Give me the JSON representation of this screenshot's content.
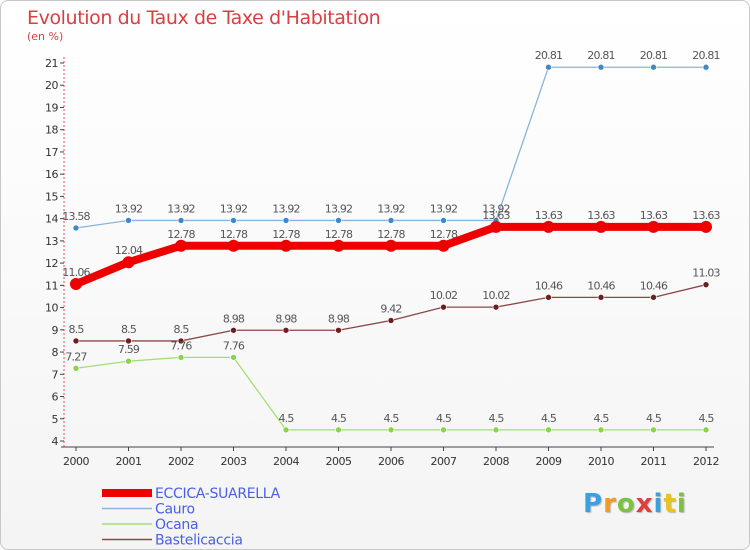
{
  "title": "Evolution du Taux de Taxe d'Habitation",
  "subtitle": "(en %)",
  "logo": {
    "text": "Proxiti",
    "letter_colors": [
      "#3aa0e0",
      "#f29b1d",
      "#7cc142",
      "#e23c3c",
      "#3aa0e0",
      "#e8c21e",
      "#7cc142"
    ]
  },
  "chart_data": {
    "type": "line",
    "title": "Evolution du Taux de Taxe d'Habitation",
    "ylabel": "(en %)",
    "xlabel": "",
    "x": [
      "2000",
      "2001",
      "2002",
      "2003",
      "2004",
      "2005",
      "2006",
      "2007",
      "2008",
      "2009",
      "2010",
      "2011",
      "2012"
    ],
    "ylim": [
      4,
      21
    ],
    "yticks": [
      "4",
      "5",
      "6",
      "7",
      "8",
      "9",
      "10",
      "11",
      "12",
      "13",
      "14",
      "15",
      "16",
      "17",
      "18",
      "19",
      "20",
      "21"
    ],
    "grid": false,
    "legend": "bottom-left",
    "series": [
      {
        "name": "ECCICA-SUARELLA",
        "color": "#ee0000",
        "marker": "#ee0000",
        "bold": true,
        "values": [
          11.06,
          12.04,
          12.78,
          12.78,
          12.78,
          12.78,
          12.78,
          12.78,
          13.63,
          13.63,
          13.63,
          13.63,
          13.63
        ],
        "labels": [
          "11.06",
          "12.04",
          "12.78",
          "12.78",
          "12.78",
          "12.78",
          "12.78",
          "12.78",
          "13.63",
          "13.63",
          "13.63",
          "13.63",
          "13.63"
        ]
      },
      {
        "name": "Cauro",
        "color": "#8ab4dc",
        "marker": "#3f88c5",
        "bold": false,
        "values": [
          13.58,
          13.92,
          13.92,
          13.92,
          13.92,
          13.92,
          13.92,
          13.92,
          13.92,
          20.81,
          20.81,
          20.81,
          20.81
        ],
        "labels": [
          "13.58",
          "13.92",
          "13.92",
          "13.92",
          "13.92",
          "13.92",
          "13.92",
          "13.92",
          "13.92",
          "20.81",
          "20.81",
          "20.81",
          "20.81"
        ]
      },
      {
        "name": "Ocana",
        "color": "#a4de72",
        "marker": "#8ad545",
        "bold": false,
        "values": [
          7.27,
          7.59,
          7.76,
          7.76,
          4.5,
          4.5,
          4.5,
          4.5,
          4.5,
          4.5,
          4.5,
          4.5,
          4.5
        ],
        "labels": [
          "7.27",
          "7.59",
          "7.76",
          "7.76",
          "4.5",
          "4.5",
          "4.5",
          "4.5",
          "4.5",
          "4.5",
          "4.5",
          "4.5",
          "4.5"
        ]
      },
      {
        "name": "Bastelicaccia",
        "color": "#8a4848",
        "marker": "#6e1e1e",
        "bold": false,
        "values": [
          8.5,
          8.5,
          8.5,
          8.98,
          8.98,
          8.98,
          9.42,
          10.02,
          10.02,
          10.46,
          10.46,
          10.46,
          11.03
        ],
        "labels": [
          "8.5",
          "8.5",
          "8.5",
          "8.98",
          "8.98",
          "8.98",
          "9.42",
          "10.02",
          "10.02",
          "10.46",
          "10.46",
          "10.46",
          "11.03"
        ]
      }
    ]
  }
}
